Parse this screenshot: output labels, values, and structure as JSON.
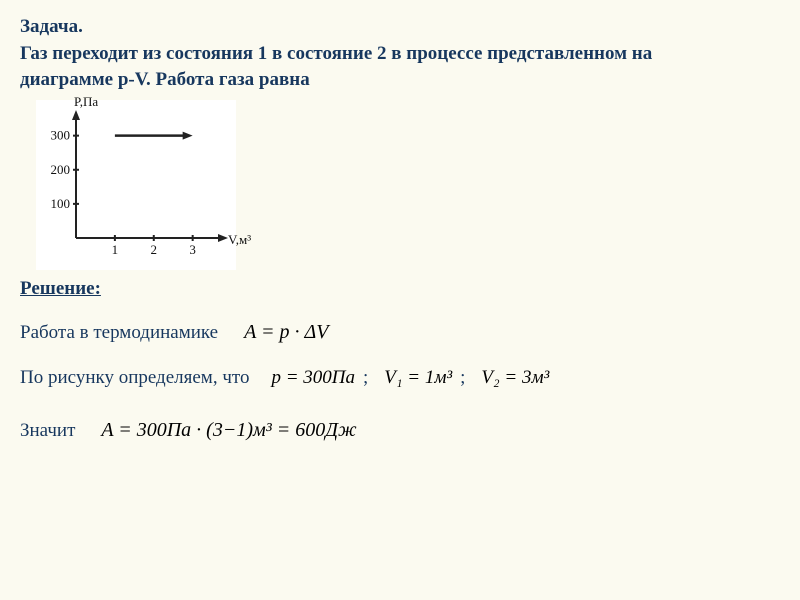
{
  "problem": {
    "heading": "Задача.",
    "text_line1": "Газ переходит из состояния 1 в состояние 2 в процессе представленном на",
    "text_line2": "диаграмме p-V. Работа газа равна"
  },
  "chart": {
    "type": "line",
    "background_color": "#ffffff",
    "axis_color": "#222222",
    "y_label": "P,Па",
    "x_label": "V,м³",
    "x_ticks": [
      1,
      2,
      3
    ],
    "y_ticks": [
      100,
      200,
      300
    ],
    "xlim": [
      0,
      3.6
    ],
    "ylim": [
      0,
      340
    ],
    "process": {
      "p": 300,
      "v_from": 1,
      "v_to": 3
    },
    "label_fontsize": 13
  },
  "solution": {
    "heading": "Решение:",
    "line_work": "Работа в термодинамике",
    "formula_A_def": "A = p · ΔV",
    "line_from_figure": "По рисунку определяем, что",
    "p_value": "p = 300Па",
    "v1_value": "V₁ = 1м³",
    "v2_value": "V₂ = 3м³",
    "sep": ";",
    "line_so": "Значит",
    "formula_result": "A = 300Па · (3−1)м³ = 600Дж"
  },
  "colors": {
    "page_bg": "#fbfaf0",
    "text": "#17375e",
    "formula": "#000000"
  }
}
